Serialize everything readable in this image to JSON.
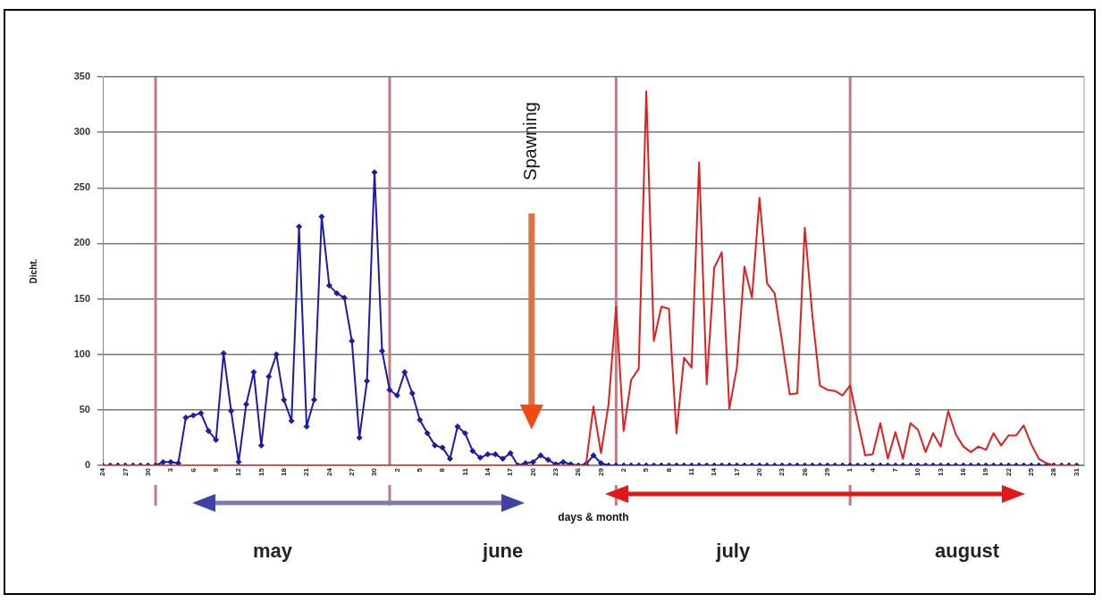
{
  "chart_data": {
    "type": "line",
    "ylabel": "Dicht.",
    "xlabel": "days & month",
    "x": [
      "--04-24",
      "--04-25",
      "--04-26",
      "--04-27",
      "--04-28",
      "--04-29",
      "--04-30",
      "--05-01",
      "--05-02",
      "--05-03",
      "--05-04",
      "--05-05",
      "--05-06",
      "--05-07",
      "--05-08",
      "--05-09",
      "--05-10",
      "--05-11",
      "--05-12",
      "--05-13",
      "--05-14",
      "--05-15",
      "--05-16",
      "--05-17",
      "--05-18",
      "--05-19",
      "--05-20",
      "--05-21",
      "--05-22",
      "--05-23",
      "--05-24",
      "--05-25",
      "--05-26",
      "--05-27",
      "--05-28",
      "--05-29",
      "--05-30",
      "--05-31",
      "--06-01",
      "--06-02",
      "--06-03",
      "--06-04",
      "--06-05",
      "--06-06",
      "--06-07",
      "--06-08",
      "--06-09",
      "--06-10",
      "--06-11",
      "--06-12",
      "--06-13",
      "--06-14",
      "--06-15",
      "--06-16",
      "--06-17",
      "--06-18",
      "--06-19",
      "--06-20",
      "--06-21",
      "--06-22",
      "--06-23",
      "--06-24",
      "--06-25",
      "--06-26",
      "--06-27",
      "--06-28",
      "--06-29",
      "--06-30",
      "--07-01",
      "--07-02",
      "--07-03",
      "--07-04",
      "--07-05",
      "--07-06",
      "--07-07",
      "--07-08",
      "--07-09",
      "--07-10",
      "--07-11",
      "--07-12",
      "--07-13",
      "--07-14",
      "--07-15",
      "--07-16",
      "--07-17",
      "--07-18",
      "--07-19",
      "--07-20",
      "--07-21",
      "--07-22",
      "--07-23",
      "--07-24",
      "--07-25",
      "--07-26",
      "--07-27",
      "--07-28",
      "--07-29",
      "--07-30",
      "--07-31",
      "--08-01",
      "--08-02",
      "--08-03",
      "--08-04",
      "--08-05",
      "--08-06",
      "--08-07",
      "--08-08",
      "--08-09",
      "--08-10",
      "--08-11",
      "--08-12",
      "--08-13",
      "--08-14",
      "--08-15",
      "--08-16",
      "--08-17",
      "--08-18",
      "--08-19",
      "--08-20",
      "--08-21",
      "--08-22",
      "--08-23",
      "--08-24",
      "--08-25",
      "--08-26",
      "--08-27",
      "--08-28",
      "--08-29",
      "--08-30",
      "--08-31"
    ],
    "series": [
      {
        "color": "#e02020",
        "marker": "none",
        "values": [
          0,
          0,
          0,
          0,
          0,
          0,
          0,
          0,
          0,
          0,
          0,
          0,
          0,
          0,
          0,
          0,
          0,
          0,
          0,
          0,
          0,
          0,
          0,
          0,
          0,
          0,
          0,
          0,
          0,
          0,
          0,
          0,
          0,
          0,
          0,
          0,
          0,
          0,
          0,
          0,
          0,
          0,
          0,
          0,
          0,
          0,
          0,
          0,
          0,
          0,
          0,
          0,
          0,
          0,
          0,
          0,
          0,
          0,
          0,
          0,
          0,
          0,
          0,
          0,
          0,
          53,
          11,
          55,
          143,
          31,
          77,
          87,
          337,
          112,
          143,
          141,
          29,
          97,
          88,
          273,
          73,
          178,
          192,
          51,
          88,
          179,
          151,
          241,
          164,
          155,
          111,
          64,
          65,
          214,
          135,
          72,
          68,
          67,
          63,
          72,
          40,
          9,
          10,
          38,
          6,
          30,
          6,
          38,
          32,
          12,
          29,
          17,
          49,
          28,
          17,
          12,
          17,
          14,
          29,
          18,
          27,
          27,
          36,
          19,
          6,
          2,
          0,
          0,
          0,
          0
        ]
      },
      {
        "color": "#1c1ca8",
        "marker": "diamond",
        "values": [
          0,
          0,
          0,
          0,
          0,
          0,
          0,
          0,
          3,
          3,
          2,
          43,
          45,
          47,
          31,
          23,
          101,
          49,
          3,
          55,
          84,
          18,
          80,
          100,
          59,
          40,
          215,
          35,
          59,
          224,
          162,
          155,
          151,
          112,
          25,
          76,
          264,
          103,
          68,
          63,
          84,
          65,
          41,
          29,
          18,
          16,
          6,
          35,
          29,
          13,
          7,
          10,
          10,
          6,
          11,
          0,
          2,
          3,
          9,
          5,
          1,
          3,
          1,
          0,
          1,
          9,
          2,
          0,
          0,
          0,
          0,
          0,
          0,
          0,
          0,
          0,
          0,
          0,
          0,
          0,
          0,
          0,
          0,
          0,
          0,
          0,
          0,
          0,
          0,
          0,
          0,
          0,
          0,
          0,
          0,
          0,
          0,
          0,
          0,
          0,
          0,
          0,
          0,
          0,
          0,
          0,
          0,
          0,
          0,
          0,
          0,
          0,
          0,
          0,
          0,
          0,
          0,
          0,
          0,
          0,
          0,
          0,
          0,
          0,
          0,
          0,
          0,
          0,
          0,
          0
        ]
      }
    ],
    "xlim": [
      "--04-24",
      "--09-01"
    ],
    "xticks": [
      {
        "value": "--04-24",
        "label": "24"
      },
      {
        "value": "--04-27",
        "label": "27"
      },
      {
        "value": "--04-30",
        "label": "30"
      },
      {
        "value": "--05-03",
        "label": "3"
      },
      {
        "value": "--05-06",
        "label": "6"
      },
      {
        "value": "--05-09",
        "label": "9"
      },
      {
        "value": "--05-12",
        "label": "12"
      },
      {
        "value": "--05-15",
        "label": "15"
      },
      {
        "value": "--05-18",
        "label": "18"
      },
      {
        "value": "--05-21",
        "label": "21"
      },
      {
        "value": "--05-24",
        "label": "24"
      },
      {
        "value": "--05-27",
        "label": "27"
      },
      {
        "value": "--05-30",
        "label": "30"
      },
      {
        "value": "--06-02",
        "label": "2"
      },
      {
        "value": "--06-05",
        "label": "5"
      },
      {
        "value": "--06-08",
        "label": "8"
      },
      {
        "value": "--06-11",
        "label": "11"
      },
      {
        "value": "--06-14",
        "label": "14"
      },
      {
        "value": "--06-17",
        "label": "17"
      },
      {
        "value": "--06-20",
        "label": "20"
      },
      {
        "value": "--06-23",
        "label": "23"
      },
      {
        "value": "--06-26",
        "label": "26"
      },
      {
        "value": "--06-29",
        "label": "29"
      },
      {
        "value": "--07-02",
        "label": "2"
      },
      {
        "value": "--07-05",
        "label": "5"
      },
      {
        "value": "--07-08",
        "label": "8"
      },
      {
        "value": "--07-11",
        "label": "11"
      },
      {
        "value": "--07-14",
        "label": "14"
      },
      {
        "value": "--07-17",
        "label": "17"
      },
      {
        "value": "--07-20",
        "label": "20"
      },
      {
        "value": "--07-23",
        "label": "23"
      },
      {
        "value": "--07-26",
        "label": "26"
      },
      {
        "value": "--07-29",
        "label": "29"
      },
      {
        "value": "--08-01",
        "label": "1"
      },
      {
        "value": "--08-04",
        "label": "4"
      },
      {
        "value": "--08-07",
        "label": "7"
      },
      {
        "value": "--08-10",
        "label": "10"
      },
      {
        "value": "--08-13",
        "label": "13"
      },
      {
        "value": "--08-16",
        "label": "16"
      },
      {
        "value": "--08-19",
        "label": "19"
      },
      {
        "value": "--08-22",
        "label": "22"
      },
      {
        "value": "--08-25",
        "label": "25"
      },
      {
        "value": "--08-28",
        "label": "28"
      },
      {
        "value": "--08-31",
        "label": "31"
      }
    ],
    "ylim": [
      0,
      350
    ],
    "yticks": [
      0,
      50,
      100,
      150,
      200,
      250,
      300,
      350
    ],
    "grid": "y",
    "legend": false,
    "ref_lines": [
      {
        "axis": "x",
        "value": "--05-01",
        "color": "#c47a7c"
      },
      {
        "axis": "x",
        "value": "--06-01",
        "color": "#c47a7c"
      },
      {
        "axis": "x",
        "value": "--07-01",
        "color": "#c47a7c"
      },
      {
        "axis": "x",
        "value": "--08-01",
        "color": "#c47a7c"
      }
    ],
    "annotations": [
      "Spawning",
      "may",
      "june",
      "july",
      "august"
    ]
  }
}
